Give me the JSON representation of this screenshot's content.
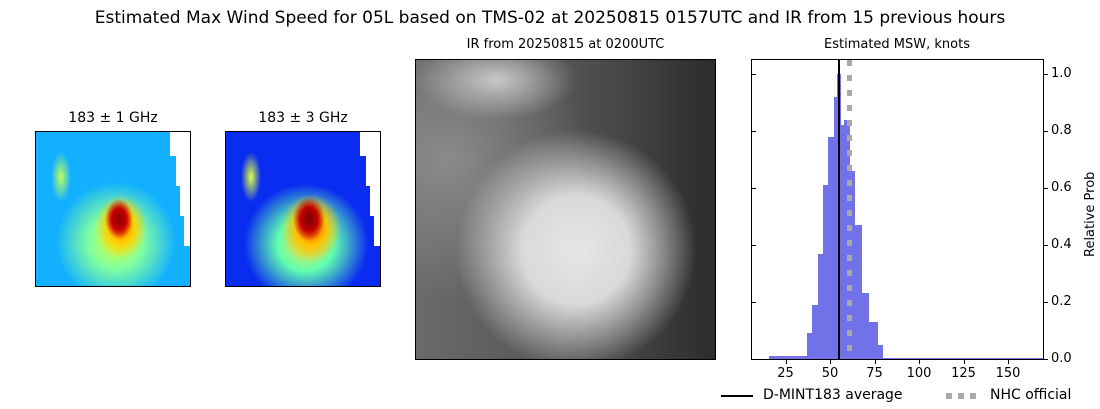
{
  "title": "Estimated Max Wind Speed for 05L based on TMS-02 at 20250815 0157UTC and IR from 15 previous hours",
  "panels": {
    "mw1": {
      "title": "183 ± 1 GHz"
    },
    "mw3": {
      "title": "183 ± 3 GHz"
    },
    "ir": {
      "title": "IR from 20250815 at 0200UTC"
    },
    "hist": {
      "title": "Estimated MSW, knots",
      "ylabel": "Relative Prob"
    }
  },
  "legend": {
    "items": [
      {
        "label": "D-MINT183 average",
        "style": "solid",
        "color": "#000000"
      },
      {
        "label": "NHC official",
        "style": "dotted",
        "color": "#a9a9a9"
      }
    ]
  },
  "colors": {
    "bar": "#7272e8",
    "mean_line": "#000000",
    "nhc_line": "#a9a9a9"
  },
  "chart_data": {
    "type": "bar",
    "title": "Estimated MSW, knots",
    "xlabel": "",
    "ylabel": "Relative Prob",
    "xlim": [
      5,
      170
    ],
    "ylim": [
      0,
      1.05
    ],
    "xticks": [
      25,
      50,
      75,
      100,
      125,
      150
    ],
    "yticks": [
      0.0,
      0.2,
      0.4,
      0.6,
      0.8,
      1.0
    ],
    "bins": [
      {
        "x0": 16,
        "x1": 37,
        "value": 0.01
      },
      {
        "x0": 37,
        "x1": 40,
        "value": 0.09
      },
      {
        "x0": 40,
        "x1": 43,
        "value": 0.19
      },
      {
        "x0": 43,
        "x1": 46,
        "value": 0.37
      },
      {
        "x0": 46,
        "x1": 49,
        "value": 0.61
      },
      {
        "x0": 49,
        "x1": 52,
        "value": 0.78
      },
      {
        "x0": 52,
        "x1": 54,
        "value": 0.92
      },
      {
        "x0": 54,
        "x1": 56,
        "value": 1.0
      },
      {
        "x0": 56,
        "x1": 58,
        "value": 0.82
      },
      {
        "x0": 58,
        "x1": 61,
        "value": 0.84
      },
      {
        "x0": 61,
        "x1": 64,
        "value": 0.66
      },
      {
        "x0": 64,
        "x1": 68,
        "value": 0.47
      },
      {
        "x0": 68,
        "x1": 72,
        "value": 0.23
      },
      {
        "x0": 72,
        "x1": 77,
        "value": 0.13
      },
      {
        "x0": 77,
        "x1": 80,
        "value": 0.05
      },
      {
        "x0": 80,
        "x1": 170,
        "value": 0.005
      }
    ],
    "vlines": [
      {
        "name": "D-MINT183 average",
        "x": 55,
        "style": "solid",
        "color": "#000000"
      },
      {
        "name": "NHC official",
        "x": 60,
        "style": "dotted",
        "color": "#a9a9a9"
      }
    ],
    "legend_position": "bottom-right"
  }
}
